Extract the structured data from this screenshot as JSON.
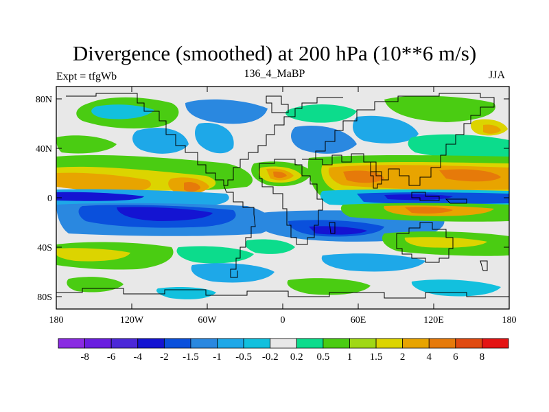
{
  "title": "Divergence (smoothed) at 200 hPa (10**6 m/s)",
  "subtitle_left": "Expt = tfgWb",
  "subtitle_center": "136_4_MaBP",
  "subtitle_right": "JJA",
  "lat_ticks": [
    {
      "value": 80,
      "label": "80N"
    },
    {
      "value": 40,
      "label": "40N"
    },
    {
      "value": 0,
      "label": "0"
    },
    {
      "value": -40,
      "label": "40S"
    },
    {
      "value": -80,
      "label": "80S"
    }
  ],
  "lon_ticks": [
    {
      "value": -180,
      "label": "180"
    },
    {
      "value": -120,
      "label": "120W"
    },
    {
      "value": -60,
      "label": "60W"
    },
    {
      "value": 0,
      "label": "0"
    },
    {
      "value": 60,
      "label": "60E"
    },
    {
      "value": 120,
      "label": "120E"
    },
    {
      "value": 180,
      "label": "180"
    }
  ],
  "colorbar": {
    "colors": [
      "#8a2be2",
      "#6a1ee0",
      "#4b28d8",
      "#1414d2",
      "#0a50dc",
      "#2a88e0",
      "#1ea8e8",
      "#12c0de",
      "#e8e8e8",
      "#0cdc8c",
      "#4acc12",
      "#a0d816",
      "#dcd400",
      "#e8a400",
      "#e67a0a",
      "#e04a10",
      "#e41414"
    ],
    "labels": [
      "-8",
      "-6",
      "-4",
      "-2",
      "-1.5",
      "-1",
      "-0.5",
      "-0.2",
      "0.2",
      "0.5",
      "1",
      "1.5",
      "2",
      "4",
      "6",
      "8"
    ]
  },
  "chart_data": {
    "type": "heatmap",
    "title": "Divergence (smoothed) at 200 hPa (10**6 m/s)",
    "variable": "Divergence",
    "units": "10**6 m/s",
    "level": "200 hPa",
    "season": "JJA",
    "experiment": "tfgWb",
    "run": "136_4_MaBP",
    "lon_range": [
      -180,
      180
    ],
    "lat_range": [
      -90,
      90
    ],
    "contour_levels": [
      -8,
      -6,
      -4,
      -2,
      -1.5,
      -1,
      -0.5,
      -0.2,
      0.2,
      0.5,
      1,
      1.5,
      2,
      4,
      6,
      8
    ],
    "features": [
      {
        "band": "equatorial",
        "lon": [
          -180,
          -100
        ],
        "lat": [
          4,
          20
        ],
        "sign": "positive",
        "peak_level": 4
      },
      {
        "band": "equatorial",
        "lon": [
          -30,
          20
        ],
        "lat": [
          8,
          25
        ],
        "sign": "positive",
        "peak_level": 4
      },
      {
        "band": "equatorial",
        "lon": [
          30,
          180
        ],
        "lat": [
          4,
          26
        ],
        "sign": "positive",
        "peak_level": 4
      },
      {
        "band": "southern subtropics",
        "lon": [
          -160,
          -40
        ],
        "lat": [
          -30,
          -10
        ],
        "sign": "negative",
        "peak_level": -4
      },
      {
        "band": "southern subtropics",
        "lon": [
          10,
          70
        ],
        "lat": [
          -45,
          -25
        ],
        "sign": "negative",
        "peak_level": -4
      },
      {
        "band": "equatorial",
        "lon": [
          60,
          180
        ],
        "lat": [
          -4,
          6
        ],
        "sign": "negative",
        "peak_level": -4
      },
      {
        "band": "southern mid-latitudes",
        "lon": [
          -180,
          180
        ],
        "lat": [
          -55,
          -35
        ],
        "sign": "positive",
        "peak_level": 1.5
      }
    ]
  }
}
